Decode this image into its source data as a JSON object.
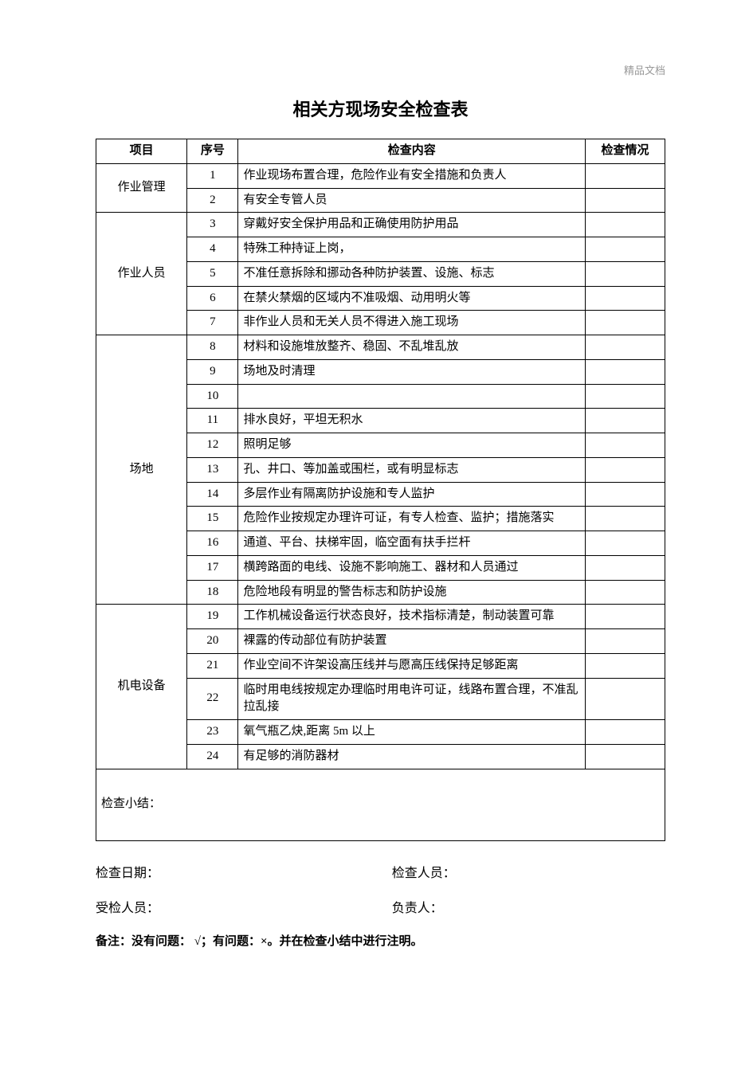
{
  "watermark": "精品文档",
  "title": "相关方现场安全检查表",
  "headers": {
    "category": "项目",
    "no": "序号",
    "content": "检查内容",
    "status": "检查情况"
  },
  "categories": [
    {
      "name": "作业管理",
      "span": 2
    },
    {
      "name": "作业人员",
      "span": 5
    },
    {
      "name": "场地",
      "span": 11
    },
    {
      "name": "机电设备",
      "span": 6
    }
  ],
  "rows": [
    {
      "no": "1",
      "content": "作业现场布置合理，危险作业有安全措施和负责人"
    },
    {
      "no": "2",
      "content": "有安全专管人员"
    },
    {
      "no": "3",
      "content": "穿戴好安全保护用品和正确使用防护用品"
    },
    {
      "no": "4",
      "content": "特殊工种持证上岗，"
    },
    {
      "no": "5",
      "content": "不准任意拆除和挪动各种防护装置、设施、标志"
    },
    {
      "no": "6",
      "content": "在禁火禁烟的区域内不准吸烟、动用明火等"
    },
    {
      "no": "7",
      "content": "非作业人员和无关人员不得进入施工现场"
    },
    {
      "no": "8",
      "content": "材料和设施堆放整齐、稳固、不乱堆乱放"
    },
    {
      "no": "9",
      "content": "场地及时清理"
    },
    {
      "no": "10",
      "content": ""
    },
    {
      "no": "11",
      "content": "排水良好，平坦无积水"
    },
    {
      "no": "12",
      "content": "照明足够"
    },
    {
      "no": "13",
      "content": "孔、井口、等加盖或围栏，或有明显标志"
    },
    {
      "no": "14",
      "content": "多层作业有隔离防护设施和专人监护"
    },
    {
      "no": "15",
      "content": "危险作业按规定办理许可证，有专人检查、监护；措施落实"
    },
    {
      "no": "16",
      "content": "通道、平台、扶梯牢固，临空面有扶手拦杆"
    },
    {
      "no": "17",
      "content": "横跨路面的电线、设施不影响施工、器材和人员通过"
    },
    {
      "no": "18",
      "content": "危险地段有明显的警告标志和防护设施"
    },
    {
      "no": "19",
      "content": "工作机械设备运行状态良好，技术指标清楚，制动装置可靠"
    },
    {
      "no": "20",
      "content": "裸露的传动部位有防护装置"
    },
    {
      "no": "21",
      "content": "作业空间不许架设高压线并与愿高压线保持足够距离"
    },
    {
      "no": "22",
      "content": "临时用电线按规定办理临时用电许可证，线路布置合理，不准乱拉乱接"
    },
    {
      "no": "23",
      "content": "氧气瓶乙炔,距离 5m 以上"
    },
    {
      "no": "24",
      "content": "有足够的消防器材"
    }
  ],
  "summary_label": "检查小结：",
  "signatures": {
    "inspection_date": "检查日期：",
    "inspectors": "检查人员：",
    "inspected_person": "受检人员：",
    "responsible": "负责人："
  },
  "note": "备注：没有问题： √；有问题：×。并在检查小结中进行注明。"
}
